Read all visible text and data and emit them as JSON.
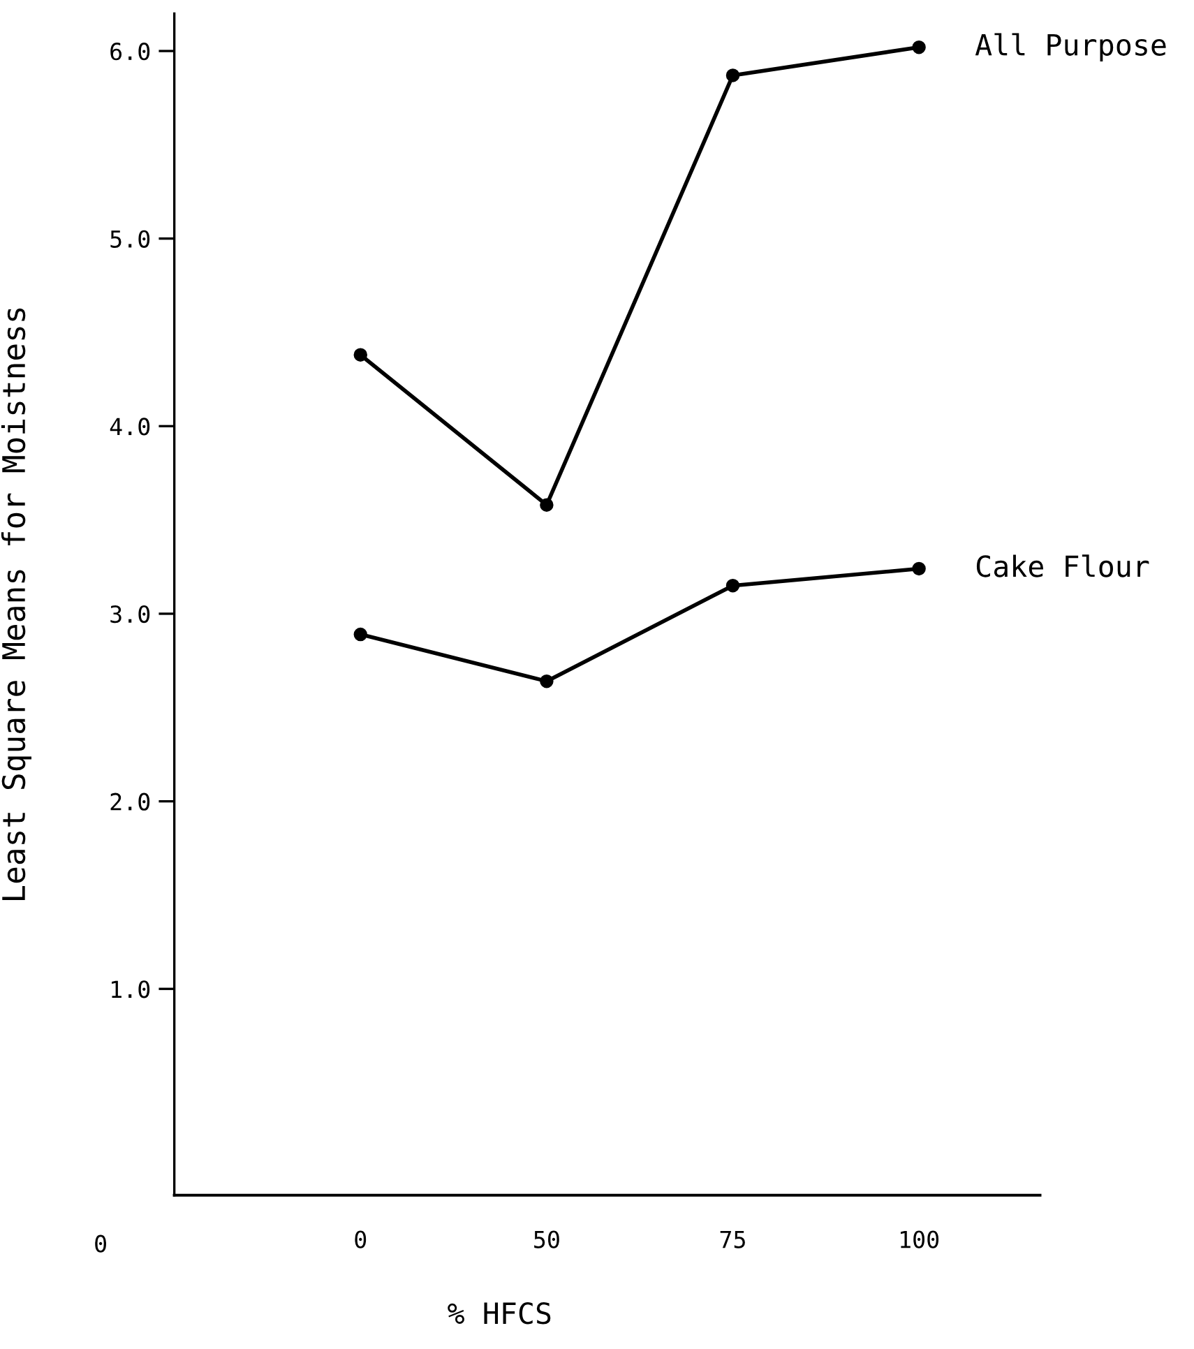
{
  "chart_data": {
    "type": "line",
    "xlabel": "% HFCS",
    "ylabel": "Least Square Means for Moistness",
    "categories": [
      "0",
      "50",
      "75",
      "100"
    ],
    "series": [
      {
        "name": "All Purpose",
        "color": "#000000",
        "values": [
          4.38,
          3.58,
          5.87,
          6.02
        ]
      },
      {
        "name": "Cake Flour",
        "color": "#000000",
        "values": [
          2.89,
          2.64,
          3.15,
          3.24
        ]
      }
    ],
    "ylim": [
      -0.1,
      6.2
    ],
    "yticks": [
      {
        "value": 1.0,
        "label": "1.0"
      },
      {
        "value": 2.0,
        "label": "2.0"
      },
      {
        "value": 3.0,
        "label": "3.0"
      },
      {
        "value": 4.0,
        "label": "4.0"
      },
      {
        "value": 5.0,
        "label": "5.0"
      },
      {
        "value": 6.0,
        "label": "6.0"
      }
    ],
    "marker": "circle",
    "line_style": "solid",
    "grid": false,
    "legend": false,
    "annotations": [
      "0"
    ]
  }
}
